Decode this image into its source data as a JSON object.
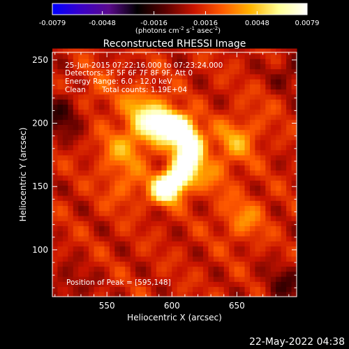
{
  "colorbar": {
    "ticks": [
      "-0.0079",
      "-0.0048",
      "-0.0016",
      "0.0016",
      "0.0048",
      "0.0079"
    ],
    "tick_values": [
      -0.0079,
      -0.0048,
      -0.0016,
      0.0016,
      0.0048,
      0.0079
    ],
    "range": [
      -0.0079,
      0.0079
    ],
    "unit_main": "(photons cm",
    "unit_exp1": "-2",
    "unit_mid": " s",
    "unit_exp2": "-1",
    "unit_end": " asec",
    "unit_exp3": "-2",
    "unit_close": ")"
  },
  "colors": {
    "background": "#000000",
    "text": "#ffffff",
    "colormap": [
      "#0000ff",
      "#3a00c8",
      "#5a0a8c",
      "#000000",
      "#5a0000",
      "#c81400",
      "#ff5a00",
      "#ffb400",
      "#ffff96",
      "#ffffff"
    ]
  },
  "chart_data": {
    "type": "heatmap",
    "title": "Reconstructed RHESSI Image",
    "xlabel": "Heliocentric X (arcsec)",
    "ylabel": "Heliocentric Y (arcsec)",
    "xlim": [
      508,
      696
    ],
    "ylim": [
      63,
      256
    ],
    "x_ticks": [
      550,
      600,
      650
    ],
    "y_ticks": [
      100,
      150,
      200,
      250
    ],
    "annotations": {
      "time_range": "25-Jun-2015 07:22:16.000 to 07:23:24.000",
      "detectors": "Detectors: 3F 5F 6F 7F 8F 9F, Att 0",
      "energy_range": "Energy Range: 6.0 - 12.0 keV",
      "algorithm": "Clean",
      "total_counts": "Total counts: 1.19E+04",
      "peak_position": "Position of Peak = [595,148]"
    },
    "peak": [
      595,
      148
    ],
    "value_range": [
      -0.0079,
      0.0079
    ],
    "sources": [
      {
        "x": 595,
        "y": 148,
        "amp": 0.0078
      },
      {
        "x": 605,
        "y": 157,
        "amp": 0.0062
      },
      {
        "x": 612,
        "y": 170,
        "amp": 0.006
      },
      {
        "x": 614,
        "y": 184,
        "amp": 0.0066
      },
      {
        "x": 607,
        "y": 196,
        "amp": 0.0066
      },
      {
        "x": 596,
        "y": 200,
        "amp": 0.005
      },
      {
        "x": 585,
        "y": 197,
        "amp": 0.004
      },
      {
        "x": 578,
        "y": 212,
        "amp": 0.0026
      },
      {
        "x": 560,
        "y": 178,
        "amp": 0.0024
      },
      {
        "x": 650,
        "y": 188,
        "amp": 0.0028
      },
      {
        "x": 655,
        "y": 125,
        "amp": 0.0022
      },
      {
        "x": 630,
        "y": 160,
        "amp": 0.0018
      },
      {
        "x": 565,
        "y": 150,
        "amp": 0.0016
      },
      {
        "x": 680,
        "y": 225,
        "amp": 0.0012
      },
      {
        "x": 540,
        "y": 225,
        "amp": 0.0013
      }
    ],
    "negative_regions": [
      {
        "x": 516,
        "y": 208,
        "amp": -0.0026
      },
      {
        "x": 688,
        "y": 236,
        "amp": -0.0022
      },
      {
        "x": 688,
        "y": 72,
        "amp": -0.002
      },
      {
        "x": 520,
        "y": 70,
        "amp": -0.0014
      }
    ]
  },
  "footer": {
    "timestamp": "22-May-2022 04:38"
  }
}
